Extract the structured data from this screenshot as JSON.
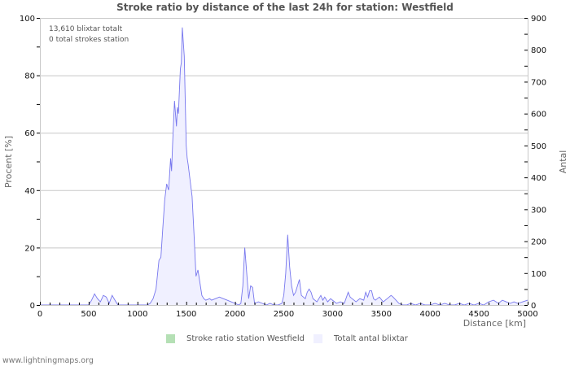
{
  "title": "Stroke ratio by distance of the last 24h for station: Westfield",
  "info": {
    "line1": "13,610 blixtar totalt",
    "line2": "0 total strokes station"
  },
  "axes": {
    "left_label": "Procent   [%]",
    "right_label": "Antal",
    "x_label": "Distance   [km]"
  },
  "legend": {
    "item1": "Stroke ratio station Westfield",
    "item2": "Totalt antal blixtar"
  },
  "footer": "www.lightningmaps.org",
  "colors": {
    "ratio": "#b5e0b5",
    "total_fill": "#f0f0ff",
    "total_line": "#7777ee",
    "grid": "#c8c8c8"
  },
  "chart_data": {
    "type": "area",
    "title": "Stroke ratio by distance of the last 24h for station: Westfield",
    "xlabel": "Distance [km]",
    "ylabel_left": "Procent [%]",
    "ylabel_right": "Antal",
    "xlim": [
      0,
      5000
    ],
    "ylim_left": [
      0,
      100
    ],
    "ylim_right": [
      0,
      900
    ],
    "x_ticks": [
      0,
      500,
      1000,
      1500,
      2000,
      2500,
      3000,
      3500,
      4000,
      4500,
      5000
    ],
    "y_ticks_left": [
      0,
      20,
      40,
      60,
      80,
      100
    ],
    "y_ticks_right": [
      0,
      100,
      200,
      300,
      400,
      500,
      600,
      700,
      800,
      900
    ],
    "grid": true,
    "legend_position": "bottom",
    "series": [
      {
        "name": "Stroke ratio station Westfield",
        "axis": "left",
        "values": []
      },
      {
        "name": "Totalt antal blixtar",
        "axis": "right",
        "x": [
          0,
          100,
          200,
          300,
          400,
          500,
          530,
          560,
          590,
          620,
          650,
          680,
          710,
          740,
          770,
          800,
          850,
          900,
          950,
          1000,
          1050,
          1100,
          1130,
          1160,
          1190,
          1220,
          1240,
          1260,
          1280,
          1300,
          1320,
          1340,
          1350,
          1360,
          1380,
          1400,
          1410,
          1420,
          1440,
          1450,
          1460,
          1480,
          1500,
          1510,
          1520,
          1540,
          1560,
          1580,
          1600,
          1620,
          1640,
          1660,
          1680,
          1700,
          1740,
          1760,
          1800,
          1840,
          1880,
          1920,
          1960,
          2000,
          2040,
          2060,
          2080,
          2100,
          2120,
          2140,
          2160,
          2180,
          2200,
          2240,
          2280,
          2320,
          2360,
          2400,
          2440,
          2480,
          2500,
          2520,
          2540,
          2560,
          2580,
          2600,
          2620,
          2640,
          2660,
          2680,
          2700,
          2720,
          2740,
          2760,
          2780,
          2800,
          2840,
          2880,
          2900,
          2920,
          2950,
          2980,
          3000,
          3040,
          3080,
          3120,
          3160,
          3180,
          3200,
          3240,
          3280,
          3320,
          3340,
          3360,
          3380,
          3400,
          3420,
          3440,
          3480,
          3520,
          3560,
          3600,
          3620,
          3650,
          3680,
          3720,
          3760,
          3800,
          3850,
          3900,
          3950,
          4000,
          4050,
          4100,
          4150,
          4200,
          4250,
          4300,
          4350,
          4400,
          4450,
          4500,
          4550,
          4600,
          4650,
          4700,
          4740,
          4780,
          4820,
          4860,
          4900,
          4950,
          5000
        ],
        "values": [
          0,
          0,
          0,
          0,
          0,
          0,
          15,
          35,
          20,
          10,
          30,
          25,
          5,
          30,
          15,
          0,
          0,
          0,
          0,
          0,
          0,
          0,
          5,
          20,
          50,
          140,
          150,
          240,
          330,
          380,
          360,
          460,
          420,
          500,
          640,
          560,
          620,
          600,
          740,
          760,
          870,
          780,
          500,
          460,
          440,
          390,
          340,
          220,
          90,
          110,
          70,
          30,
          20,
          15,
          20,
          15,
          20,
          25,
          20,
          15,
          10,
          5,
          0,
          5,
          60,
          180,
          100,
          20,
          60,
          55,
          5,
          10,
          5,
          0,
          5,
          0,
          0,
          5,
          30,
          100,
          220,
          120,
          60,
          30,
          40,
          60,
          80,
          30,
          25,
          20,
          40,
          50,
          40,
          20,
          10,
          30,
          15,
          25,
          10,
          20,
          15,
          5,
          10,
          5,
          40,
          25,
          20,
          10,
          20,
          15,
          40,
          25,
          45,
          45,
          20,
          15,
          25,
          10,
          20,
          30,
          25,
          15,
          5,
          0,
          0,
          5,
          0,
          5,
          0,
          0,
          5,
          0,
          5,
          0,
          0,
          5,
          0,
          5,
          0,
          5,
          0,
          10,
          15,
          5,
          15,
          10,
          5,
          10,
          5,
          10,
          15
        ]
      }
    ]
  }
}
